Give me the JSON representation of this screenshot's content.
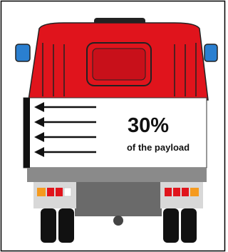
{
  "panel": {
    "value_text": "30%",
    "caption": "of the payload"
  }
}
